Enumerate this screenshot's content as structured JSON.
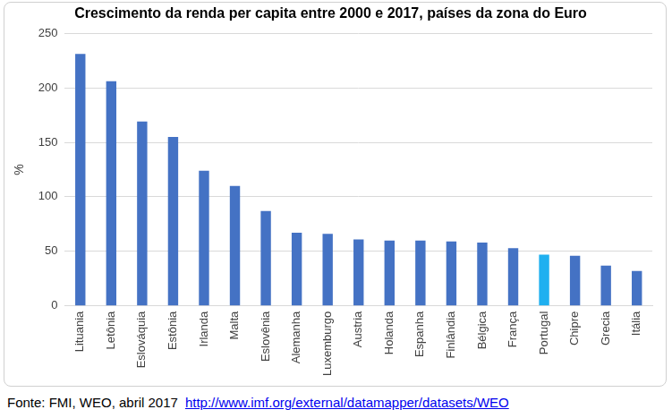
{
  "chart_data": {
    "type": "bar",
    "title": "Crescimento da renda per capita entre 2000 e 2017, países da zona do Euro",
    "y_label": "%",
    "source": "Fonte: FMI, WEO, abril 2017",
    "source_link": "http://www.imf.org/external/datamapper/datasets/WEO",
    "categories": [
      "Lituania",
      "Letônia",
      "Eslováquia",
      "Estônia",
      "Irlanda",
      "Malta",
      "Eslovênia",
      "Alemanha",
      "Luxemburgo",
      "Austria",
      "Holanda",
      "Espanha",
      "Finlândia",
      "Bélgica",
      "França",
      "Portugal",
      "Chipre",
      "Grecia",
      "Itália"
    ],
    "values": [
      231,
      206,
      169,
      155,
      124,
      110,
      87,
      67,
      66,
      61,
      60,
      60,
      59,
      58,
      53,
      47,
      46,
      37,
      32
    ],
    "colors": [
      "#4472c4",
      "#4472c4",
      "#4472c4",
      "#4472c4",
      "#4472c4",
      "#4472c4",
      "#4472c4",
      "#4472c4",
      "#4472c4",
      "#4472c4",
      "#4472c4",
      "#4472c4",
      "#4472c4",
      "#4472c4",
      "#4472c4",
      "#1fb0f0",
      "#4472c4",
      "#4472c4",
      "#4472c4"
    ],
    "ylim": [
      0,
      250
    ],
    "yticks": [
      0,
      50,
      100,
      150,
      200,
      250
    ],
    "grid": true
  }
}
